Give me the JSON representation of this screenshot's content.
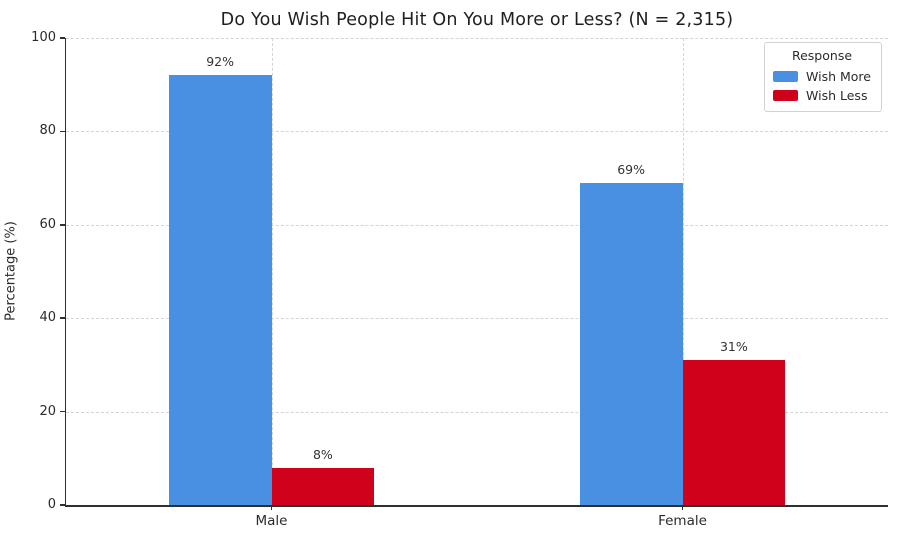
{
  "chart_data": {
    "type": "bar",
    "title": "Do You Wish People Hit On You More or Less? (N = 2,315)",
    "xlabel": "",
    "ylabel": "Percentage (%)",
    "categories": [
      "Male",
      "Female"
    ],
    "series": [
      {
        "name": "Wish More",
        "color": "#4A90E2",
        "values": [
          92,
          69
        ],
        "labels": [
          "92%",
          "69%"
        ]
      },
      {
        "name": "Wish Less",
        "color": "#D0021B",
        "values": [
          8,
          31
        ],
        "labels": [
          "8%",
          "31%"
        ]
      }
    ],
    "ylim": [
      0,
      100
    ],
    "yticks": [
      0,
      20,
      40,
      60,
      80,
      100
    ],
    "grid": true,
    "grid_style": "dashed",
    "legend_title": "Response",
    "legend_position": "upper right"
  }
}
